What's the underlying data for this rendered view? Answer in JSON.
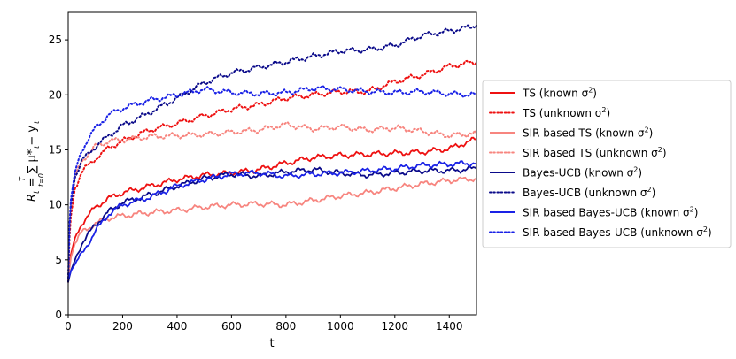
{
  "chart_data": {
    "type": "line",
    "xlabel": "t",
    "ylabel_main": "R",
    "ylabel_sub": "t",
    "ylabel_rest": " = ∑ μ* − ȳ",
    "ylabel_sum_upper": "T",
    "ylabel_sum_lower": "t=0",
    "ylabel_mu_sub": "t",
    "ylabel_y_sub": "t",
    "xlim": [
      0,
      1500
    ],
    "ylim": [
      0,
      27.5
    ],
    "xticks": [
      "0",
      "200",
      "400",
      "600",
      "800",
      "1000",
      "1200",
      "1400"
    ],
    "xtick_values": [
      0,
      200,
      400,
      600,
      800,
      1000,
      1200,
      1400
    ],
    "yticks": [
      "0",
      "5",
      "10",
      "15",
      "20",
      "25"
    ],
    "ytick_values": [
      0,
      5,
      10,
      15,
      20,
      25
    ],
    "grid": false,
    "legend_position": "right",
    "series": [
      {
        "name": "TS (known σ²)",
        "label_main": "TS (known σ",
        "color": "#ee1111",
        "style": "solid",
        "x": [
          0,
          5,
          10,
          25,
          50,
          100,
          150,
          200,
          300,
          400,
          500,
          600,
          700,
          800,
          900,
          1000,
          1100,
          1200,
          1300,
          1400,
          1500
        ],
        "y": [
          3.0,
          4.5,
          5.5,
          7.0,
          8.3,
          9.8,
          10.6,
          11.1,
          11.7,
          12.3,
          12.7,
          12.9,
          13.2,
          13.8,
          14.3,
          14.5,
          14.6,
          14.7,
          14.8,
          15.1,
          16.0
        ]
      },
      {
        "name": "TS (unknown σ²)",
        "label_main": "TS (unknown σ",
        "color": "#ee1111",
        "style": "dotted",
        "x": [
          0,
          5,
          10,
          25,
          50,
          100,
          150,
          200,
          300,
          400,
          500,
          600,
          700,
          800,
          900,
          1000,
          1100,
          1200,
          1300,
          1400,
          1500
        ],
        "y": [
          3.0,
          7.0,
          9.0,
          11.5,
          13.0,
          14.2,
          15.2,
          15.8,
          16.8,
          17.4,
          18.1,
          18.7,
          19.1,
          19.7,
          20.0,
          20.3,
          20.3,
          21.2,
          21.8,
          22.6,
          23.0
        ]
      },
      {
        "name": "SIR based TS (known σ²)",
        "label_main": "SIR based TS (known σ",
        "color": "#f7857f",
        "style": "solid",
        "x": [
          0,
          5,
          10,
          25,
          50,
          100,
          150,
          200,
          300,
          400,
          500,
          600,
          700,
          800,
          900,
          1000,
          1100,
          1200,
          1300,
          1400,
          1500
        ],
        "y": [
          3.0,
          4.2,
          5.2,
          6.5,
          7.5,
          8.3,
          8.8,
          9.0,
          9.3,
          9.5,
          9.8,
          10.0,
          10.1,
          10.0,
          10.4,
          10.8,
          11.1,
          11.5,
          11.9,
          12.2,
          12.4
        ]
      },
      {
        "name": "SIR based TS (unknown σ²)",
        "label_main": "SIR based TS (unknown σ",
        "color": "#f7857f",
        "style": "dotted",
        "x": [
          0,
          5,
          10,
          25,
          50,
          100,
          150,
          200,
          300,
          400,
          500,
          600,
          700,
          800,
          900,
          1000,
          1100,
          1200,
          1300,
          1400,
          1500
        ],
        "y": [
          3.0,
          8.0,
          10.0,
          12.5,
          14.0,
          15.3,
          15.8,
          15.9,
          16.2,
          16.3,
          16.4,
          16.6,
          16.8,
          17.3,
          16.9,
          17.1,
          16.8,
          17.0,
          16.7,
          16.3,
          16.5
        ]
      },
      {
        "name": "Bayes-UCB (known σ²)",
        "label_main": "Bayes-UCB (known σ",
        "color": "#0a0a8a",
        "style": "solid",
        "x": [
          0,
          5,
          10,
          25,
          50,
          100,
          150,
          200,
          300,
          400,
          500,
          600,
          700,
          800,
          900,
          1000,
          1100,
          1200,
          1300,
          1400,
          1500
        ],
        "y": [
          3.0,
          3.5,
          4.0,
          5.0,
          6.5,
          8.2,
          9.4,
          10.2,
          10.9,
          11.7,
          12.4,
          12.8,
          12.6,
          13.0,
          13.2,
          12.9,
          12.7,
          12.9,
          13.1,
          13.1,
          13.3
        ]
      },
      {
        "name": "Bayes-UCB (unknown σ²)",
        "label_main": "Bayes-UCB (unknown σ",
        "color": "#0a0a8a",
        "style": "dotted",
        "x": [
          0,
          5,
          10,
          25,
          50,
          100,
          150,
          200,
          300,
          400,
          500,
          600,
          700,
          800,
          900,
          1000,
          1100,
          1200,
          1300,
          1400,
          1500
        ],
        "y": [
          3.0,
          8.0,
          10.0,
          12.5,
          14.0,
          15.3,
          16.3,
          17.2,
          18.4,
          19.7,
          21.1,
          22.0,
          22.5,
          23.0,
          23.5,
          24.0,
          24.1,
          24.5,
          25.4,
          25.8,
          26.3
        ]
      },
      {
        "name": "SIR based Bayes-UCB (known σ²)",
        "label_main": "SIR based Bayes-UCB (known σ",
        "color": "#1a22e6",
        "style": "solid",
        "x": [
          0,
          5,
          10,
          25,
          50,
          100,
          150,
          200,
          300,
          400,
          500,
          600,
          700,
          800,
          900,
          1000,
          1100,
          1200,
          1300,
          1400,
          1500
        ],
        "y": [
          3.3,
          3.6,
          4.0,
          4.6,
          5.5,
          7.6,
          9.2,
          10.0,
          10.7,
          11.7,
          12.3,
          12.8,
          12.9,
          12.6,
          12.8,
          12.9,
          13.1,
          13.3,
          13.6,
          13.7,
          13.8
        ]
      },
      {
        "name": "SIR based Bayes-UCB (unknown σ²)",
        "label_main": "SIR based Bayes-UCB (unknown σ",
        "color": "#1a22e6",
        "style": "dotted",
        "x": [
          0,
          5,
          10,
          25,
          50,
          100,
          150,
          200,
          300,
          400,
          500,
          600,
          700,
          800,
          900,
          1000,
          1100,
          1200,
          1300,
          1400,
          1500
        ],
        "y": [
          3.3,
          8.3,
          10.5,
          13.0,
          15.0,
          17.0,
          18.2,
          18.8,
          19.5,
          20.0,
          20.5,
          20.2,
          20.1,
          20.2,
          20.6,
          20.5,
          20.3,
          20.2,
          20.3,
          20.1,
          20.0
        ]
      }
    ]
  }
}
